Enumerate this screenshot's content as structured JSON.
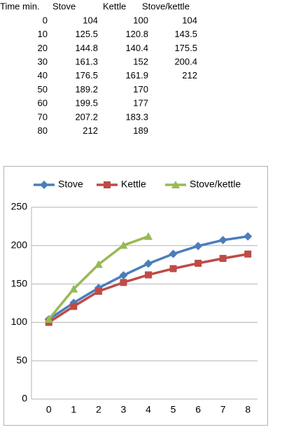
{
  "table": {
    "header": [
      "Time min.",
      "Stove",
      "Kettle",
      "Stove/kettle"
    ],
    "rows": [
      [
        0,
        104,
        100,
        104
      ],
      [
        10,
        125.5,
        120.8,
        143.5
      ],
      [
        20,
        144.8,
        140.4,
        175.5
      ],
      [
        30,
        161.3,
        152,
        200.4
      ],
      [
        40,
        176.5,
        161.9,
        212
      ],
      [
        50,
        189.2,
        170
      ],
      [
        60,
        199.5,
        177
      ],
      [
        70,
        207.2,
        183.3
      ],
      [
        80,
        212,
        189
      ]
    ]
  },
  "chart_data": {
    "type": "line",
    "categories": [
      "0",
      "1",
      "2",
      "3",
      "4",
      "5",
      "6",
      "7",
      "8"
    ],
    "series": [
      {
        "name": "Stove",
        "color": "#4a7ebb",
        "marker": "diamond",
        "values": [
          104,
          125.5,
          144.8,
          161.3,
          176.5,
          189.2,
          199.5,
          207.2,
          212
        ]
      },
      {
        "name": "Kettle",
        "color": "#be4b48",
        "marker": "square",
        "values": [
          100,
          120.8,
          140.4,
          152,
          161.9,
          170,
          177,
          183.3,
          189
        ]
      },
      {
        "name": "Stove/kettle",
        "color": "#98b954",
        "marker": "triangle",
        "values": [
          104,
          143.5,
          175.5,
          200.4,
          212,
          null,
          null,
          null,
          null
        ]
      }
    ],
    "ylim": [
      0,
      250
    ],
    "yticks": [
      0,
      50,
      100,
      150,
      200,
      250
    ],
    "grid": true,
    "legend": "top"
  }
}
